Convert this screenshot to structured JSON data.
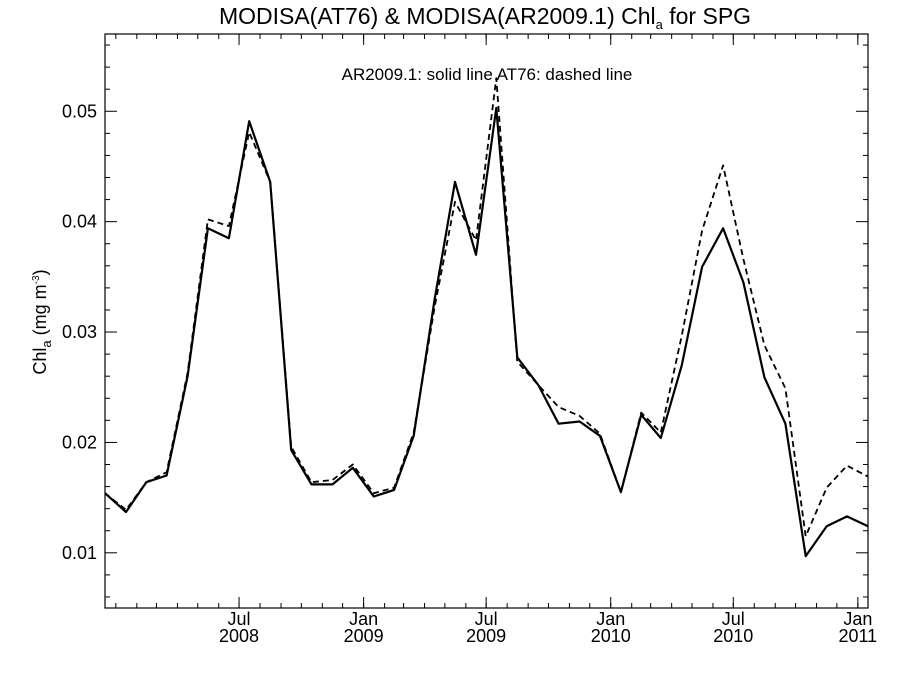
{
  "chart_data": {
    "type": "line",
    "title": {
      "main": "MODISA(AT76) & MODISA(AR2009.1)  Chl",
      "subscript": "a",
      "suffix": " for SPG"
    },
    "annotation": "AR2009.1: solid line   AT76: dashed line",
    "ylabel": {
      "main": "Chl",
      "subscript": "a",
      "unit_open": " (mg m",
      "unit_sup": "-3",
      "unit_close": ")"
    },
    "ylim": [
      0.005,
      0.057
    ],
    "xlim": [
      "2007-12-16",
      "2011-01-16"
    ],
    "yticks": [
      {
        "value": 0.01,
        "label": "0.01"
      },
      {
        "value": 0.02,
        "label": "0.02"
      },
      {
        "value": 0.03,
        "label": "0.03"
      },
      {
        "value": 0.04,
        "label": "0.04"
      },
      {
        "value": 0.05,
        "label": "0.05"
      }
    ],
    "xticks": [
      {
        "date": "2008-07-01",
        "month": "Jul",
        "year": "2008"
      },
      {
        "date": "2009-01-01",
        "month": "Jan",
        "year": "2009"
      },
      {
        "date": "2009-07-01",
        "month": "Jul",
        "year": "2009"
      },
      {
        "date": "2010-01-01",
        "month": "Jan",
        "year": "2010"
      },
      {
        "date": "2010-07-01",
        "month": "Jul",
        "year": "2010"
      },
      {
        "date": "2011-01-01",
        "month": "Jan",
        "year": "2011"
      }
    ],
    "grid": false,
    "legend": "none",
    "x": [
      "2007-12-16",
      "2008-01-16",
      "2008-02-15",
      "2008-03-16",
      "2008-04-16",
      "2008-05-16",
      "2008-06-16",
      "2008-07-16",
      "2008-08-16",
      "2008-09-16",
      "2008-10-16",
      "2008-11-16",
      "2008-12-16",
      "2009-01-16",
      "2009-02-15",
      "2009-03-16",
      "2009-04-16",
      "2009-05-16",
      "2009-06-16",
      "2009-07-16",
      "2009-08-16",
      "2009-09-16",
      "2009-10-16",
      "2009-11-16",
      "2009-12-16",
      "2010-01-16",
      "2010-02-15",
      "2010-03-16",
      "2010-04-16",
      "2010-05-16",
      "2010-06-16",
      "2010-07-16",
      "2010-08-16",
      "2010-09-16",
      "2010-10-16",
      "2010-11-16",
      "2010-12-16",
      "2011-01-16"
    ],
    "series": [
      {
        "name": "AR2009.1",
        "dash": "solid",
        "values": [
          0.0154,
          0.0137,
          0.0164,
          0.017,
          0.026,
          0.0394,
          0.0385,
          0.0491,
          0.0436,
          0.0193,
          0.0162,
          0.0162,
          0.0177,
          0.0151,
          0.0157,
          0.0206,
          0.033,
          0.0436,
          0.037,
          0.0503,
          0.0277,
          0.0252,
          0.0217,
          0.0219,
          0.0206,
          0.0155,
          0.0225,
          0.0204,
          0.027,
          0.0359,
          0.0394,
          0.0345,
          0.0259,
          0.0217,
          0.0097,
          0.0124,
          0.0133,
          0.0124
        ]
      },
      {
        "name": "AT76",
        "dash": "dashed",
        "values": [
          0.0154,
          0.0139,
          0.0164,
          0.0173,
          0.0263,
          0.0402,
          0.0396,
          0.0481,
          0.0436,
          0.0196,
          0.0164,
          0.0166,
          0.018,
          0.0154,
          0.0159,
          0.0209,
          0.0323,
          0.0418,
          0.0383,
          0.053,
          0.0273,
          0.0252,
          0.0232,
          0.0224,
          0.0208,
          0.0155,
          0.0227,
          0.0209,
          0.0297,
          0.0392,
          0.0451,
          0.0366,
          0.0288,
          0.0249,
          0.0115,
          0.0159,
          0.0179,
          0.0169
        ]
      }
    ]
  }
}
